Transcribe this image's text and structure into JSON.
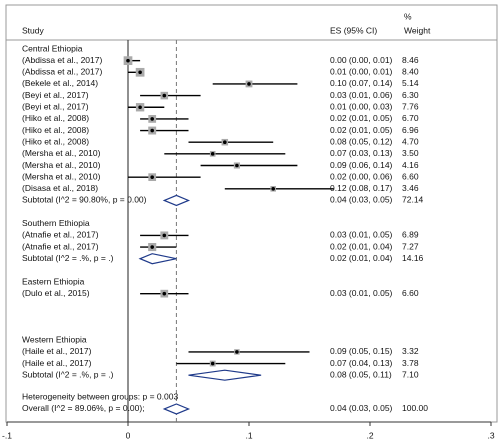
{
  "chart_data": {
    "type": "forest",
    "headers": {
      "study": "Study",
      "es": "ES (95% CI)",
      "pct": "%",
      "weight": "Weight"
    },
    "xlim": [
      -0.1,
      0.3
    ],
    "xticks": [
      {
        "value": -0.1,
        "label": "-.1"
      },
      0,
      {
        "value": 0.1,
        "label": ".1"
      },
      {
        "value": 0.2,
        "label": ".2"
      },
      {
        "value": 0.3,
        "label": ".3"
      }
    ],
    "groups": [
      {
        "name": "Central Ethiopia",
        "studies": [
          {
            "label": "(Abdissa et al., 2017)",
            "es": 0.0,
            "lo": 0.0,
            "hi": 0.01,
            "ci_label": "0.00 (0.00, 0.01)",
            "weight": 8.46,
            "weight_label": "8.46"
          },
          {
            "label": "(Abdissa et al., 2017)",
            "es": 0.01,
            "lo": 0.0,
            "hi": 0.01,
            "ci_label": "0.01 (0.00, 0.01)",
            "weight": 8.4,
            "weight_label": "8.40"
          },
          {
            "label": "(Bekele et al., 2014)",
            "es": 0.1,
            "lo": 0.07,
            "hi": 0.14,
            "ci_label": "0.10 (0.07, 0.14)",
            "weight": 5.14,
            "weight_label": "5.14"
          },
          {
            "label": "(Beyi et al., 2017)",
            "es": 0.03,
            "lo": 0.01,
            "hi": 0.06,
            "ci_label": "0.03 (0.01, 0.06)",
            "weight": 6.3,
            "weight_label": "6.30"
          },
          {
            "label": "(Beyi et al., 2017)",
            "es": 0.01,
            "lo": 0.0,
            "hi": 0.03,
            "ci_label": "0.01 (0.00, 0.03)",
            "weight": 7.76,
            "weight_label": "7.76"
          },
          {
            "label": "(Hiko et al., 2008)",
            "es": 0.02,
            "lo": 0.01,
            "hi": 0.05,
            "ci_label": "0.02 (0.01, 0.05)",
            "weight": 6.7,
            "weight_label": "6.70"
          },
          {
            "label": "(Hiko et al., 2008)",
            "es": 0.02,
            "lo": 0.01,
            "hi": 0.05,
            "ci_label": "0.02 (0.01, 0.05)",
            "weight": 6.96,
            "weight_label": "6.96"
          },
          {
            "label": "(Hiko et al., 2008)",
            "es": 0.08,
            "lo": 0.05,
            "hi": 0.12,
            "ci_label": "0.08 (0.05, 0.12)",
            "weight": 4.7,
            "weight_label": "4.70"
          },
          {
            "label": "(Mersha et al., 2010)",
            "es": 0.07,
            "lo": 0.03,
            "hi": 0.13,
            "ci_label": "0.07 (0.03, 0.13)",
            "weight": 3.5,
            "weight_label": "3.50"
          },
          {
            "label": "(Mersha et al., 2010)",
            "es": 0.09,
            "lo": 0.06,
            "hi": 0.14,
            "ci_label": "0.09 (0.06, 0.14)",
            "weight": 4.16,
            "weight_label": "4.16"
          },
          {
            "label": "(Mersha et al., 2010)",
            "es": 0.02,
            "lo": 0.0,
            "hi": 0.06,
            "ci_label": "0.02 (0.00, 0.06)",
            "weight": 6.6,
            "weight_label": "6.60"
          },
          {
            "label": "(Disasa et al., 2018)",
            "es": 0.12,
            "lo": 0.08,
            "hi": 0.17,
            "ci_label": "0.12 (0.08, 0.17)",
            "weight": 3.46,
            "weight_label": "3.46"
          }
        ],
        "subtotal": {
          "label": "Subtotal  (I^2 = 90.80%, p = 0.00)",
          "es": 0.04,
          "lo": 0.03,
          "hi": 0.05,
          "ci_label": "0.04 (0.03, 0.05)",
          "weight": 72.14,
          "weight_label": "72.14"
        }
      },
      {
        "name": "Southern Ethiopia",
        "studies": [
          {
            "label": "(Atnafie et al., 2017)",
            "es": 0.03,
            "lo": 0.01,
            "hi": 0.05,
            "ci_label": "0.03 (0.01, 0.05)",
            "weight": 6.89,
            "weight_label": "6.89"
          },
          {
            "label": "(Atnafie et al., 2017)",
            "es": 0.02,
            "lo": 0.01,
            "hi": 0.04,
            "ci_label": "0.02 (0.01, 0.04)",
            "weight": 7.27,
            "weight_label": "7.27"
          }
        ],
        "subtotal": {
          "label": "Subtotal  (I^2 = .%, p = .)",
          "es": 0.02,
          "lo": 0.01,
          "hi": 0.04,
          "ci_label": "0.02 (0.01, 0.04)",
          "weight": 14.16,
          "weight_label": "14.16"
        }
      },
      {
        "name": "Eastern Ethiopia",
        "studies": [
          {
            "label": "(Dulo et al., 2015)",
            "es": 0.03,
            "lo": 0.01,
            "hi": 0.05,
            "ci_label": "0.03 (0.01, 0.05)",
            "weight": 6.6,
            "weight_label": "6.60"
          }
        ]
      },
      {
        "name": "Western Ethiopia",
        "studies": [
          {
            "label": "(Haile et al., 2017)",
            "es": 0.09,
            "lo": 0.05,
            "hi": 0.15,
            "ci_label": "0.09 (0.05, 0.15)",
            "weight": 3.32,
            "weight_label": "3.32"
          },
          {
            "label": "(Haile et al., 2017)",
            "es": 0.07,
            "lo": 0.04,
            "hi": 0.13,
            "ci_label": "0.07 (0.04, 0.13)",
            "weight": 3.78,
            "weight_label": "3.78"
          }
        ],
        "subtotal": {
          "label": "Subtotal  (I^2 = .%, p = .)",
          "es": 0.08,
          "lo": 0.05,
          "hi": 0.11,
          "ci_label": "0.08 (0.05, 0.11)",
          "weight": 7.1,
          "weight_label": "7.10"
        }
      }
    ],
    "heterogeneity": "Heterogeneity between groups: p = 0.003",
    "overall": {
      "label": "Overall  (I^2 = 89.06%, p = 0.00);",
      "es": 0.04,
      "lo": 0.03,
      "hi": 0.05,
      "ci_label": "0.04 (0.03, 0.05)",
      "weight": 100.0,
      "weight_label": "100.00"
    }
  }
}
